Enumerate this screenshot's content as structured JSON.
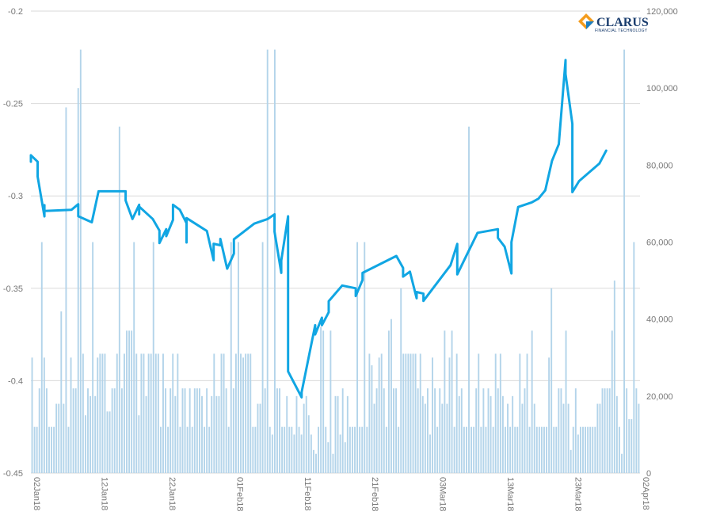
{
  "chart_data": {
    "type": "bar+line",
    "logo": {
      "name": "CLARUS",
      "tagline": "FINANCIAL TECHNOLOGY"
    },
    "left_axis": {
      "range": [
        -0.45,
        -0.2
      ],
      "ticks": [
        "-0.2",
        "-0.25",
        "-0.3",
        "-0.35",
        "-0.4",
        "-0.45"
      ]
    },
    "right_axis": {
      "range": [
        0,
        120000
      ],
      "ticks": [
        "120,000",
        "100,000",
        "80,000",
        "60,000",
        "40,000",
        "20,000",
        "0"
      ]
    },
    "x_axis": {
      "start_date": "2018-01-02",
      "end_date": "2018-04-02",
      "tick_labels": [
        "02Jan18",
        "12Jan18",
        "22Jan18",
        "01Feb18",
        "11Feb18",
        "21Feb18",
        "03Mar18",
        "13Mar18",
        "23Mar18",
        "02Apr18"
      ]
    },
    "grid": true,
    "colors": {
      "bars": "#b3d4ea",
      "line": "#11a6e3",
      "grid": "#d9d9d9",
      "ticks": "#777777"
    },
    "bar_series": {
      "axis": "right",
      "values": [
        30000,
        12000,
        12000,
        22000,
        60000,
        30000,
        22000,
        12000,
        12000,
        12000,
        18000,
        18000,
        42000,
        18000,
        95000,
        12000,
        30000,
        22000,
        22000,
        100000,
        110000,
        31000,
        15000,
        22000,
        20000,
        60000,
        20000,
        30000,
        31000,
        31000,
        31000,
        16000,
        16000,
        22000,
        22000,
        31000,
        90000,
        22000,
        31000,
        37000,
        37000,
        37000,
        60000,
        31000,
        15000,
        31000,
        31000,
        20000,
        31000,
        31000,
        60000,
        31000,
        31000,
        12000,
        31000,
        22000,
        12000,
        22000,
        31000,
        20000,
        31000,
        12000,
        22000,
        22000,
        12000,
        22000,
        12000,
        22000,
        22000,
        22000,
        20000,
        12000,
        22000,
        12000,
        20000,
        31000,
        20000,
        20000,
        31000,
        31000,
        22000,
        12000,
        60000,
        22000,
        31000,
        60000,
        31000,
        30000,
        31000,
        31000,
        31000,
        12000,
        12000,
        18000,
        18000,
        60000,
        22000,
        110000,
        12000,
        10000,
        110000,
        22000,
        22000,
        12000,
        12000,
        20000,
        12000,
        12000,
        10000,
        20000,
        12000,
        10000,
        18000,
        20000,
        15000,
        10000,
        6000,
        5000,
        12000,
        38000,
        37000,
        12000,
        8000,
        37000,
        5000,
        20000,
        20000,
        10000,
        22000,
        8000,
        20000,
        12000,
        12000,
        12000,
        60000,
        12000,
        12000,
        60000,
        12000,
        31000,
        28000,
        18000,
        22000,
        30000,
        31000,
        22000,
        12000,
        37000,
        40000,
        22000,
        22000,
        12000,
        48000,
        31000,
        31000,
        31000,
        31000,
        31000,
        31000,
        22000,
        31000,
        20000,
        18000,
        22000,
        10000,
        30000,
        22000,
        12000,
        22000,
        18000,
        37000,
        18000,
        30000,
        37000,
        12000,
        31000,
        20000,
        22000,
        12000,
        12000,
        90000,
        12000,
        12000,
        22000,
        31000,
        12000,
        22000,
        12000,
        22000,
        20000,
        12000,
        31000,
        22000,
        31000,
        20000,
        12000,
        18000,
        12000,
        20000,
        12000,
        12000,
        31000,
        18000,
        22000,
        31000,
        12000,
        37000,
        18000,
        12000,
        12000,
        12000,
        12000,
        12000,
        30000,
        48000,
        12000,
        12000,
        22000,
        22000,
        18000,
        37000,
        18000,
        6000,
        12000,
        22000,
        10000,
        12000,
        12000,
        12000,
        12000,
        12000,
        12000,
        12000,
        18000,
        18000,
        22000,
        22000,
        22000,
        22000,
        37000,
        50000,
        20000,
        12000,
        5000,
        110000,
        22000,
        14000,
        14000,
        60000,
        22000,
        18000
      ]
    },
    "line_series": {
      "axis": "left",
      "points": [
        [
          "2018-01-02",
          -0.279
        ],
        [
          "2018-01-02",
          -0.2815
        ],
        [
          "2018-01-02",
          -0.278
        ],
        [
          "2018-01-03",
          -0.2815
        ],
        [
          "2018-01-03",
          -0.2895
        ],
        [
          "2018-01-04",
          -0.3111
        ],
        [
          "2018-01-04",
          -0.305
        ],
        [
          "2018-01-04",
          -0.3082
        ],
        [
          "2018-01-08",
          -0.3075
        ],
        [
          "2018-01-09",
          -0.3045
        ],
        [
          "2018-01-09",
          -0.311
        ],
        [
          "2018-01-11",
          -0.3143
        ],
        [
          "2018-01-12",
          -0.2975
        ],
        [
          "2018-01-16",
          -0.2975
        ],
        [
          "2018-01-16",
          -0.3025
        ],
        [
          "2018-01-17",
          -0.3125
        ],
        [
          "2018-01-18",
          -0.3048
        ],
        [
          "2018-01-18",
          -0.31
        ],
        [
          "2018-01-18",
          -0.3058
        ],
        [
          "2018-01-20",
          -0.3125
        ],
        [
          "2018-01-21",
          -0.3188
        ],
        [
          "2018-01-21",
          -0.3255
        ],
        [
          "2018-01-22",
          -0.318
        ],
        [
          "2018-01-22",
          -0.3218
        ],
        [
          "2018-01-23",
          -0.313
        ],
        [
          "2018-01-23",
          -0.3048
        ],
        [
          "2018-01-24",
          -0.3075
        ],
        [
          "2018-01-25",
          -0.3148
        ],
        [
          "2018-01-25",
          -0.3252
        ],
        [
          "2018-01-25",
          -0.312
        ],
        [
          "2018-01-28",
          -0.319
        ],
        [
          "2018-01-29",
          -0.3348
        ],
        [
          "2018-01-29",
          -0.3259
        ],
        [
          "2018-01-30",
          -0.3267
        ],
        [
          "2018-01-30",
          -0.3233
        ],
        [
          "2018-01-31",
          -0.3394
        ],
        [
          "2018-02-01",
          -0.3312
        ],
        [
          "2018-02-01",
          -0.3235
        ],
        [
          "2018-02-04",
          -0.315
        ],
        [
          "2018-02-06",
          -0.3125
        ],
        [
          "2018-02-07",
          -0.31
        ],
        [
          "2018-02-07",
          -0.3194
        ],
        [
          "2018-02-08",
          -0.3417
        ],
        [
          "2018-02-08",
          -0.335
        ],
        [
          "2018-02-09",
          -0.311
        ],
        [
          "2018-02-09",
          -0.362
        ],
        [
          "2018-02-09",
          -0.395
        ],
        [
          "2018-02-11",
          -0.409
        ],
        [
          "2018-02-11",
          -0.4062
        ],
        [
          "2018-02-13",
          -0.37
        ],
        [
          "2018-02-13",
          -0.375
        ],
        [
          "2018-02-14",
          -0.3659
        ],
        [
          "2018-02-14",
          -0.37
        ],
        [
          "2018-02-15",
          -0.363
        ],
        [
          "2018-02-15",
          -0.357
        ],
        [
          "2018-02-17",
          -0.3485
        ],
        [
          "2018-02-19",
          -0.35
        ],
        [
          "2018-02-19",
          -0.3542
        ],
        [
          "2018-02-20",
          -0.3455
        ],
        [
          "2018-02-20",
          -0.3417
        ],
        [
          "2018-02-25",
          -0.3325
        ],
        [
          "2018-02-26",
          -0.339
        ],
        [
          "2018-02-26",
          -0.3437
        ],
        [
          "2018-02-27",
          -0.341
        ],
        [
          "2018-02-28",
          -0.3554
        ],
        [
          "2018-02-28",
          -0.352
        ],
        [
          "2018-03-01",
          -0.3529
        ],
        [
          "2018-03-01",
          -0.3568
        ],
        [
          "2018-03-05",
          -0.3375
        ],
        [
          "2018-03-06",
          -0.326
        ],
        [
          "2018-03-06",
          -0.3425
        ],
        [
          "2018-03-07",
          -0.335
        ],
        [
          "2018-03-09",
          -0.32
        ],
        [
          "2018-03-12",
          -0.318
        ],
        [
          "2018-03-12",
          -0.3227
        ],
        [
          "2018-03-13",
          -0.3275
        ],
        [
          "2018-03-14",
          -0.342
        ],
        [
          "2018-03-14",
          -0.325
        ],
        [
          "2018-03-15",
          -0.306
        ],
        [
          "2018-03-17",
          -0.3035
        ],
        [
          "2018-03-18",
          -0.3015
        ],
        [
          "2018-03-19",
          -0.297
        ],
        [
          "2018-03-20",
          -0.281
        ],
        [
          "2018-03-21",
          -0.272
        ],
        [
          "2018-03-22",
          -0.2265
        ],
        [
          "2018-03-22",
          -0.234
        ],
        [
          "2018-03-23",
          -0.261
        ],
        [
          "2018-03-23",
          -0.298
        ],
        [
          "2018-03-24",
          -0.292
        ],
        [
          "2018-03-27",
          -0.2825
        ],
        [
          "2018-03-28",
          -0.2755
        ]
      ]
    }
  }
}
